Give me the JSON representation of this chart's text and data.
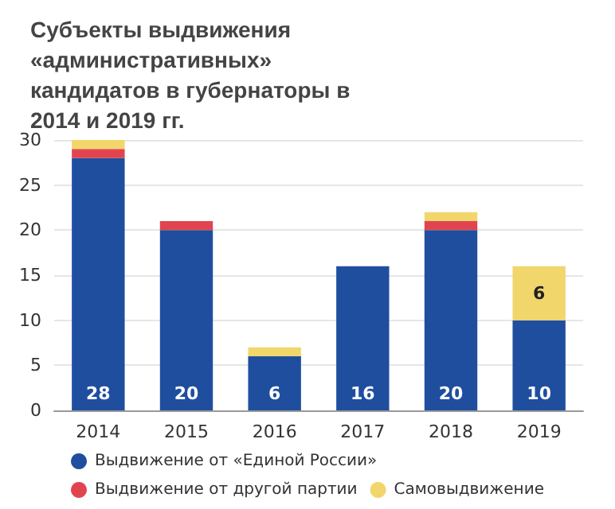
{
  "chart_data": {
    "type": "bar",
    "title": "Субъекты выдвижения «административных» кандидатов в губернаторы в 2014 и 2019 гг.",
    "categories": [
      "2014",
      "2015",
      "2016",
      "2017",
      "2018",
      "2019"
    ],
    "stacked": true,
    "series": [
      {
        "name": "Выдвижение от «Единой России»",
        "color": "#1f4e9e",
        "values": [
          28,
          20,
          6,
          16,
          20,
          10
        ],
        "value_labels": [
          "28",
          "20",
          "6",
          "16",
          "20",
          "10"
        ]
      },
      {
        "name": "Выдвижение от другой партии",
        "color": "#e0454f",
        "values": [
          1,
          1,
          0,
          0,
          1,
          0
        ]
      },
      {
        "name": "Самовыдвижение",
        "color": "#f1d66b",
        "values": [
          1,
          0,
          1,
          0,
          1,
          6
        ],
        "value_labels": [
          null,
          null,
          null,
          null,
          null,
          "6"
        ]
      }
    ],
    "ylim": [
      0,
      30
    ],
    "yticks": [
      0,
      5,
      10,
      15,
      20,
      25,
      30
    ],
    "grid": "y",
    "legend": "bottom"
  }
}
